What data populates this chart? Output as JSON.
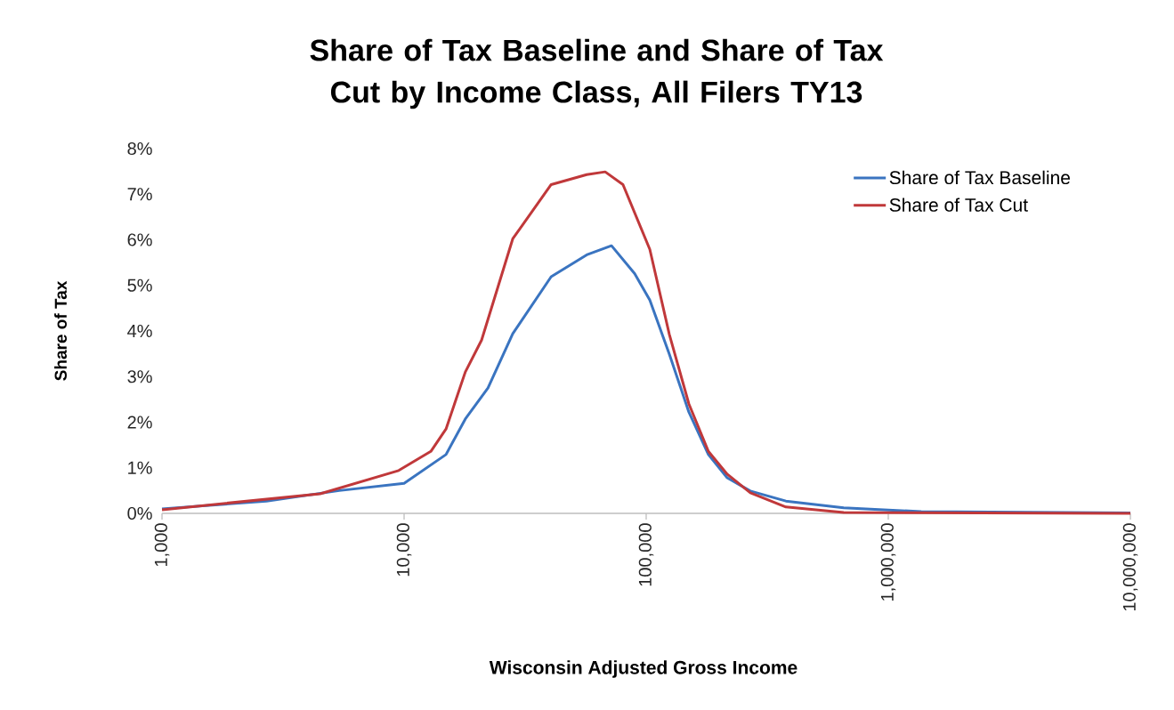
{
  "chart_data": {
    "type": "line",
    "title": "Share of Tax Baseline and Share of Tax Cut by Income Class, All Filers TY13",
    "xlabel": "Wisconsin Adjusted Gross Income",
    "ylabel": "Share of Tax",
    "log": "x",
    "legend": "top right",
    "marker": "none",
    "line_style": "solid",
    "xlim": [
      1000,
      10000000
    ],
    "xticks": [
      {
        "value": 1000,
        "label": "1,000"
      },
      {
        "value": 10000,
        "label": "10,000"
      },
      {
        "value": 100000,
        "label": "100,000"
      },
      {
        "value": 1000000,
        "label": "1,000,000"
      },
      {
        "value": 10000000,
        "label": "10,000,000"
      }
    ],
    "ylim": [
      0,
      8
    ],
    "yticks": [
      {
        "value": 0,
        "label": "0%"
      },
      {
        "value": 1,
        "label": "1%"
      },
      {
        "value": 2,
        "label": "2%"
      },
      {
        "value": 3,
        "label": "3%"
      },
      {
        "value": 4,
        "label": "4%"
      },
      {
        "value": 5,
        "label": "5%"
      },
      {
        "value": 6,
        "label": "6%"
      },
      {
        "value": 7,
        "label": "7%"
      },
      {
        "value": 8,
        "label": "8%"
      }
    ],
    "series": [
      {
        "name": "Share of Tax Baseline",
        "color": "#3a74c0",
        "x": [
          1000,
          2700,
          5400,
          10000,
          14900,
          17900,
          22200,
          28100,
          40500,
          56800,
          71900,
          89600,
          103500,
          124700,
          150100,
          180700,
          216100,
          269300,
          377600,
          654400,
          1368000,
          10000000
        ],
        "values": [
          0.1,
          0.27,
          0.5,
          0.66,
          1.29,
          2.07,
          2.75,
          3.94,
          5.19,
          5.67,
          5.87,
          5.26,
          4.68,
          3.49,
          2.22,
          1.29,
          0.78,
          0.49,
          0.27,
          0.12,
          0.04,
          0.01
        ]
      },
      {
        "name": "Share of Tax Cut",
        "color": "#c0383a",
        "x": [
          1000,
          4500,
          9500,
          12900,
          14900,
          17900,
          20900,
          28100,
          40500,
          56800,
          67700,
          80200,
          103500,
          124700,
          150100,
          180700,
          216100,
          269300,
          377600,
          654400,
          10000000
        ],
        "values": [
          0.08,
          0.43,
          0.94,
          1.36,
          1.85,
          3.1,
          3.8,
          6.02,
          7.21,
          7.43,
          7.49,
          7.21,
          5.79,
          3.92,
          2.4,
          1.36,
          0.86,
          0.45,
          0.14,
          0.02,
          0.0
        ]
      }
    ]
  }
}
